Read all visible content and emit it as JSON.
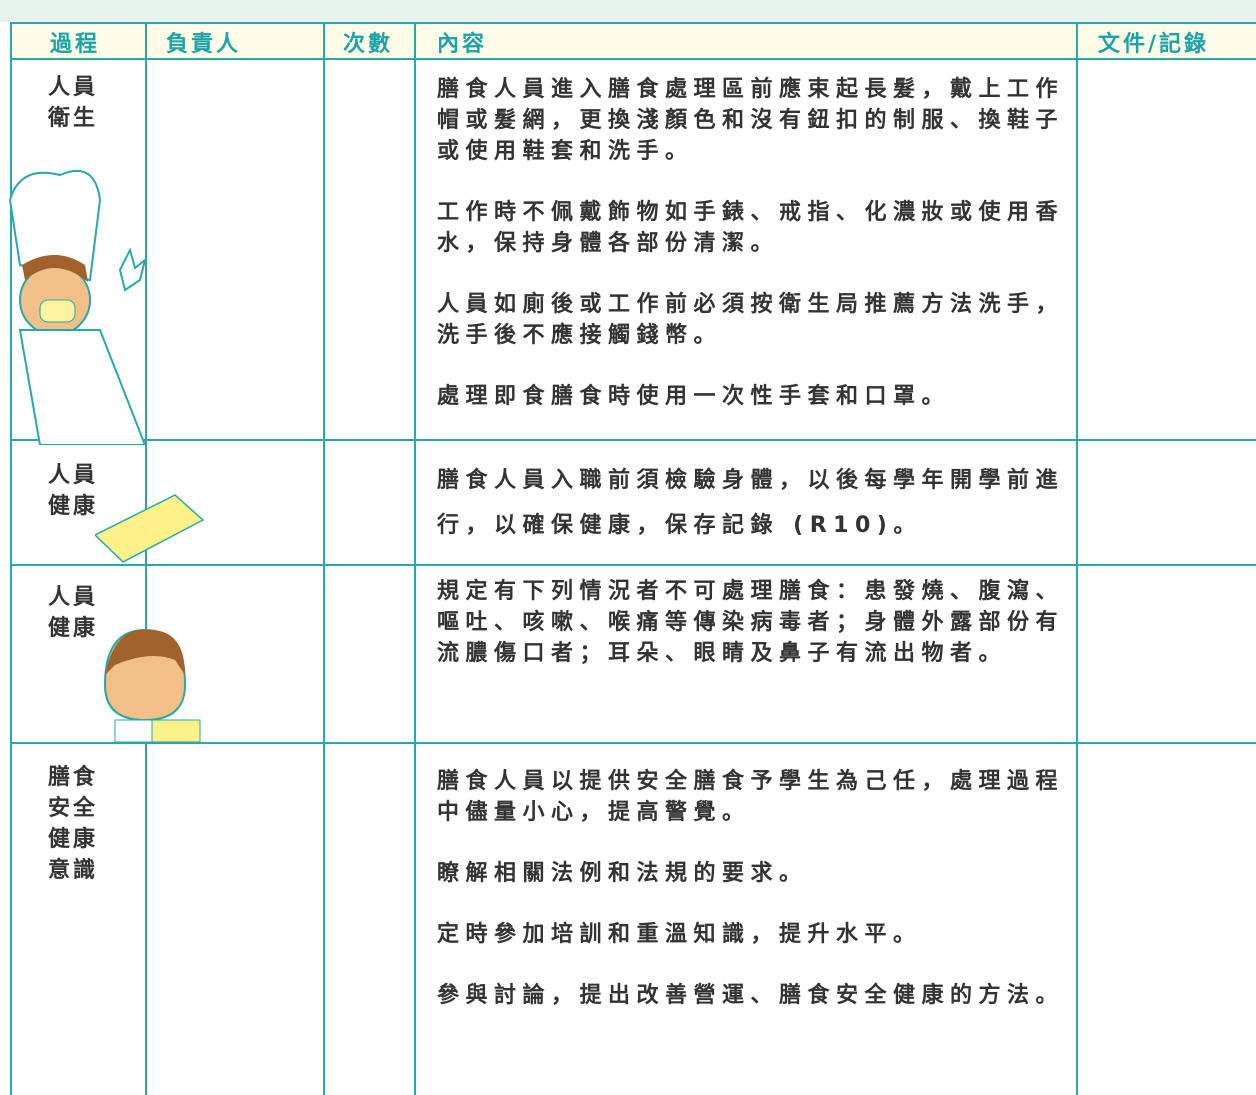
{
  "table": {
    "headers": [
      "過程",
      "負責人",
      "次數",
      "內容",
      "文件/記錄"
    ],
    "rows": [
      {
        "process": "人員衛生",
        "content": [
          "膳食人員進入膳食處理區前應束起長髮，戴上工作帽或髮網，更換淺顏色和沒有鈕扣的制服、換鞋子或使用鞋套和洗手。",
          "工作時不佩戴飾物如手錶、戒指、化濃妝或使用香水，保持身體各部份清潔。",
          "人員如廁後或工作前必須按衛生局推薦方法洗手，洗手後不應接觸錢幣。",
          "處理即食膳食時使用一次性手套和口罩。"
        ]
      },
      {
        "process": "人員健康",
        "content": [
          "膳食人員入職前須檢驗身體，以後每學年開學前進行，以確保健康，保存記錄 (R10)。"
        ]
      },
      {
        "process": "人員健康",
        "content": [
          "規定有下列情況者不可處理膳食：患發燒、腹瀉、嘔吐、咳嗽、喉痛等傳染病毒者；身體外露部份有流膿傷口者；耳朵、眼睛及鼻子有流出物者。"
        ]
      },
      {
        "process": "膳食安全健康意識",
        "content": [
          "膳食人員以提供安全膳食予學生為己任，處理過程中儘量小心，提高警覺。",
          "瞭解相關法例和法規的要求。",
          "定時參加培訓和重溫知識，提升水平。",
          "參與討論，提出改善營運、膳食安全健康的方法。"
        ]
      }
    ]
  }
}
